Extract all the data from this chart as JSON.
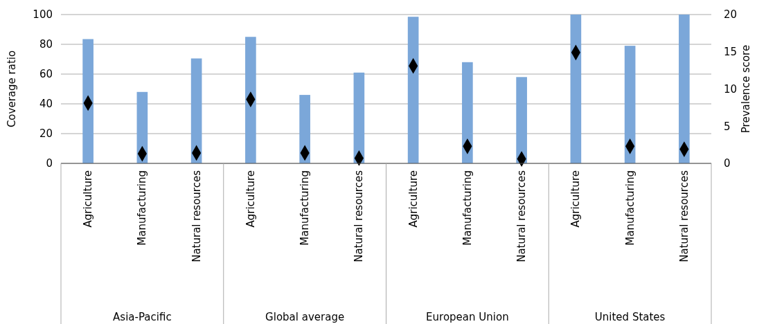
{
  "chart_data": {
    "type": "bar",
    "categories": [
      "Agriculture",
      "Manufacturing",
      "Natural resources",
      "Agriculture",
      "Manufacturing",
      "Natural resources",
      "Agriculture",
      "Manufacturing",
      "Natural resources",
      "Agriculture",
      "Manufacturing",
      "Natural resources"
    ],
    "annotations": [
      "Asia-Pacific",
      "Global average",
      "European Union",
      "United States"
    ],
    "ylabel": "Coverage ratio",
    "y2label": "Prevalence score",
    "ylim": [
      0,
      100
    ],
    "yticks": [
      0,
      20,
      40,
      60,
      80,
      100
    ],
    "y2lim": [
      0,
      20
    ],
    "y2ticks": [
      0,
      5,
      10,
      15,
      20
    ],
    "grid": "y",
    "series": [
      {
        "color": "#7ba7d9",
        "values": [
          83.5,
          48,
          70.5,
          85,
          46,
          61,
          98.5,
          68,
          58,
          100,
          79,
          100
        ]
      },
      {
        "type": "scatter",
        "axis": "y2",
        "marker": "diamond",
        "color": "#000000",
        "values": [
          8.1,
          1.3,
          1.4,
          8.6,
          1.4,
          0.7,
          13.1,
          2.3,
          0.6,
          14.9,
          2.3,
          1.9
        ]
      }
    ]
  }
}
